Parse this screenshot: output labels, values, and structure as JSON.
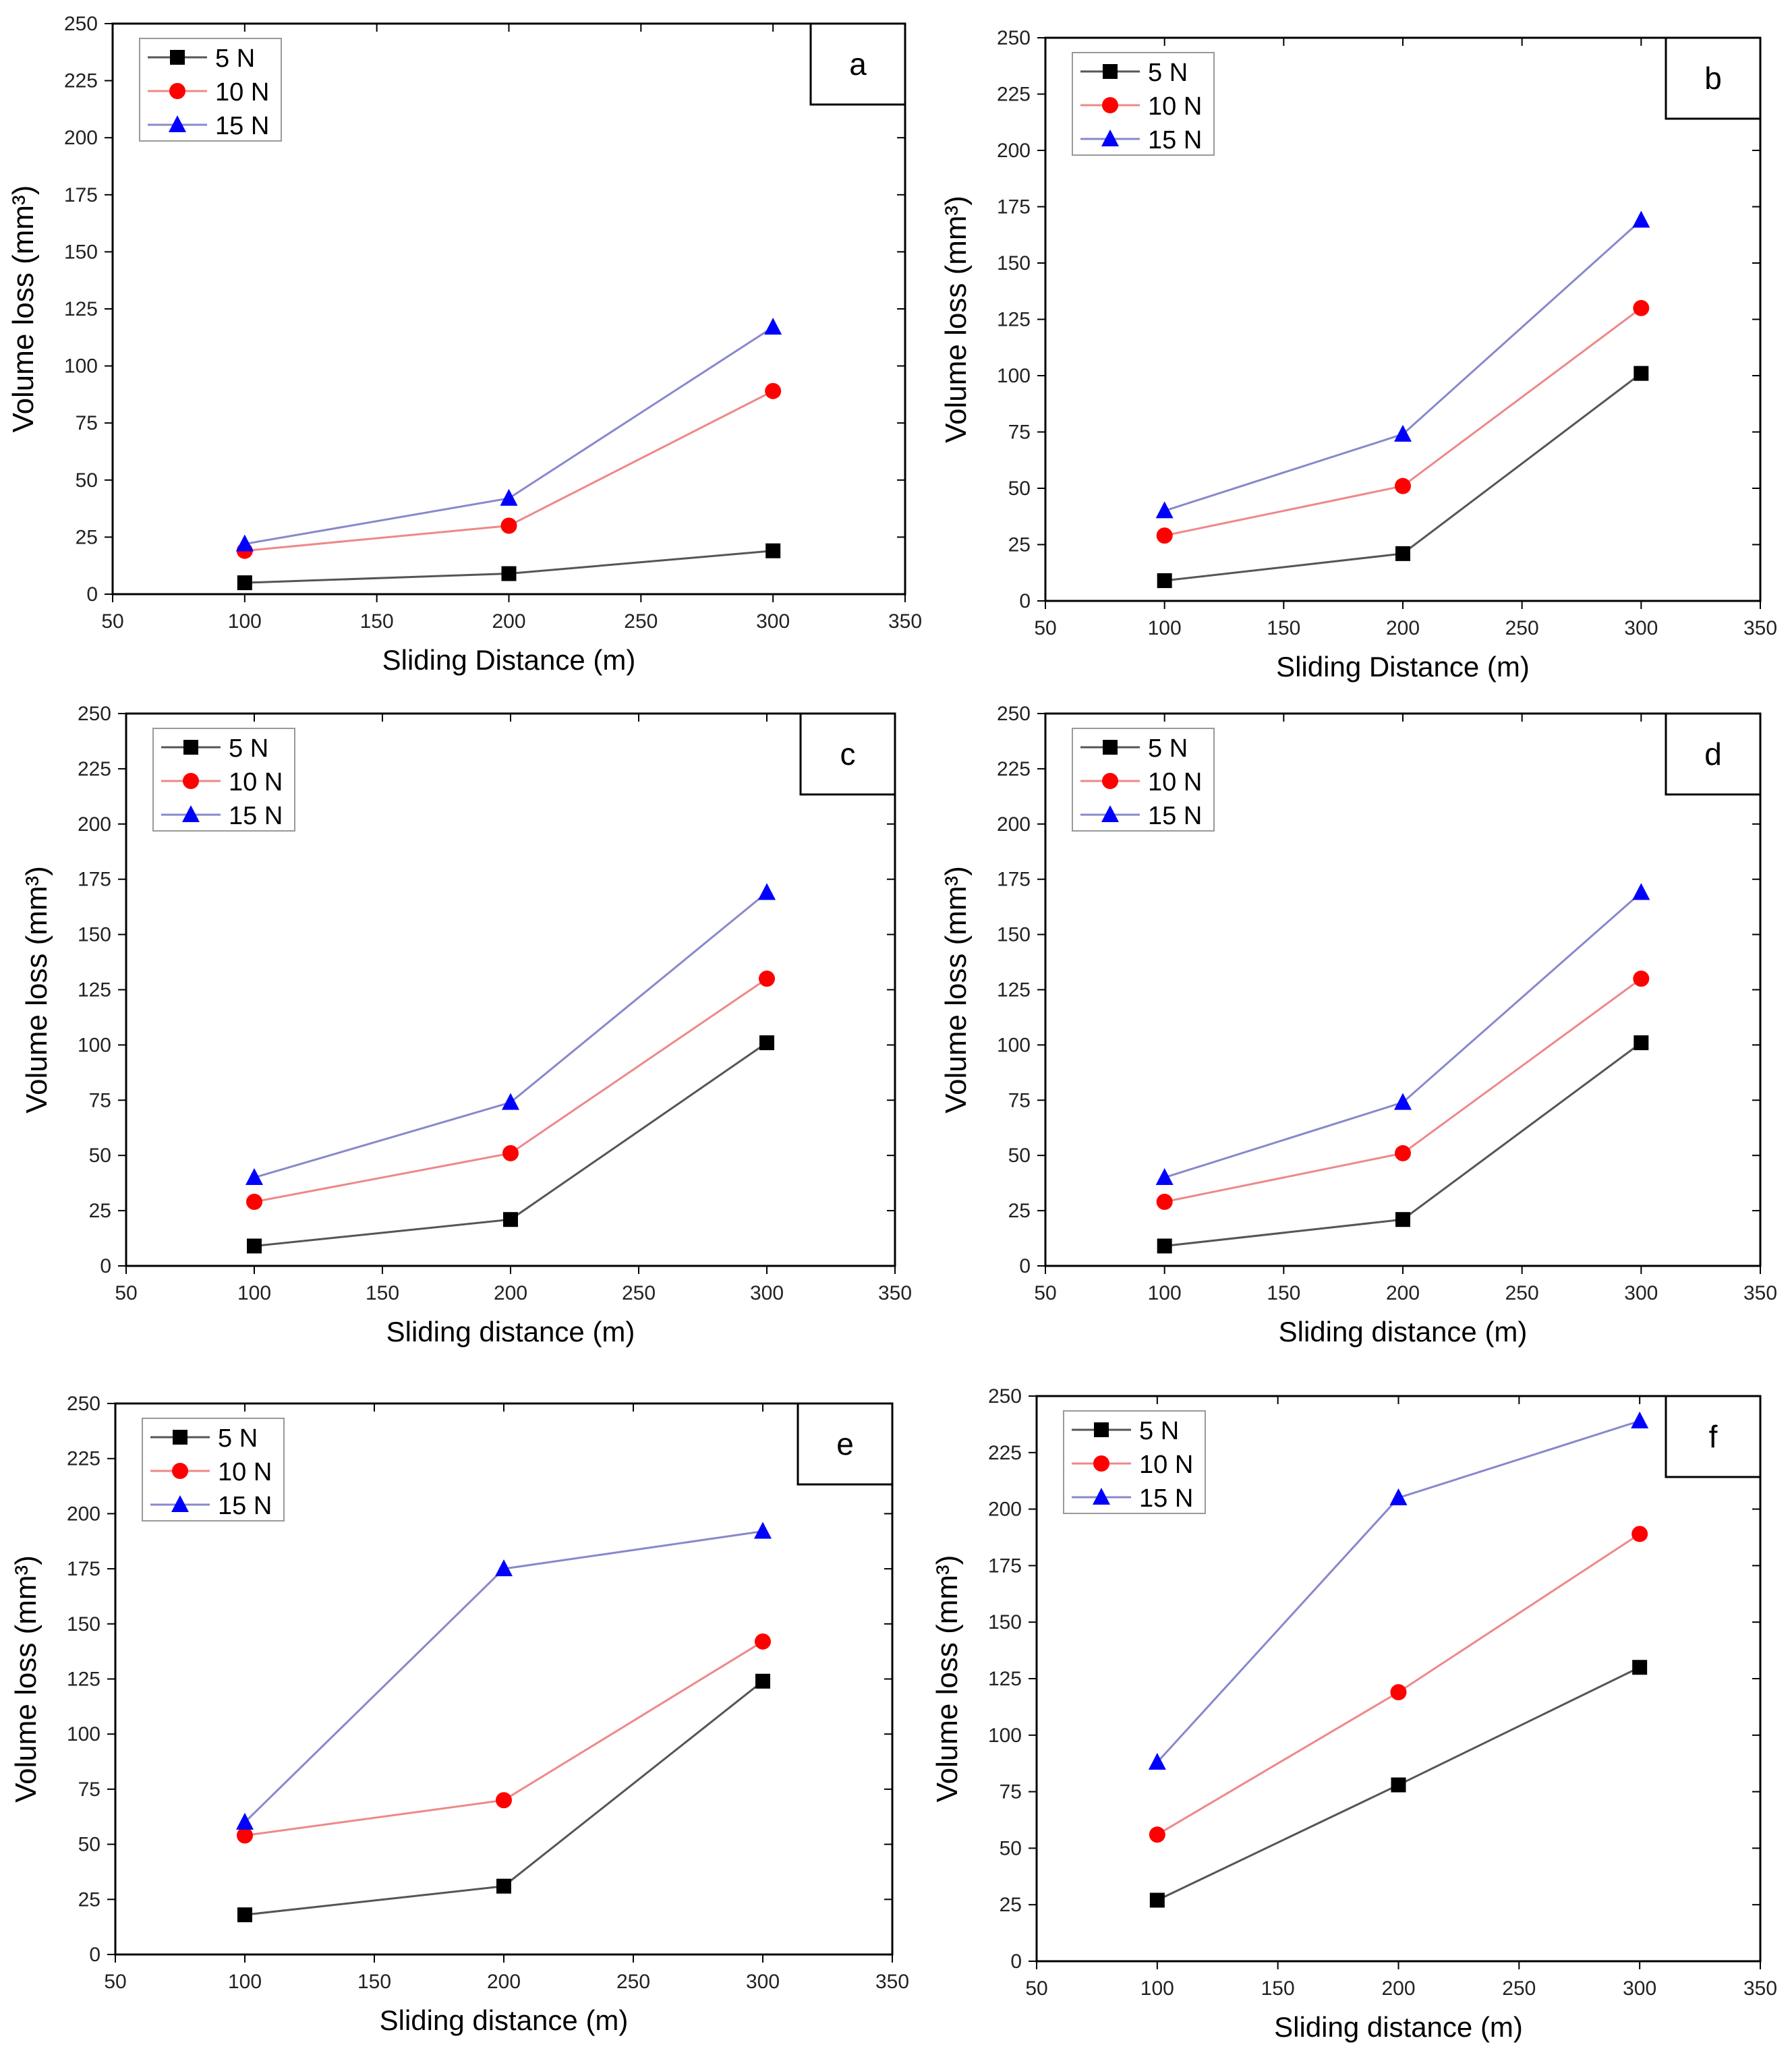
{
  "chart_data": [
    {
      "panel": "a",
      "type": "line",
      "xlabel": "Sliding Distance (m)",
      "ylabel": "Volume loss (mm³)",
      "xlim": [
        50,
        350
      ],
      "ylim": [
        0,
        250
      ],
      "xticks": [
        50,
        100,
        150,
        200,
        250,
        300,
        350
      ],
      "yticks": [
        0,
        25,
        50,
        75,
        100,
        125,
        150,
        175,
        200,
        225,
        250
      ],
      "legend": "top-left",
      "x": [
        100,
        200,
        300
      ],
      "series": [
        {
          "name": "5 N",
          "values": [
            5,
            9,
            19
          ],
          "color": "#000000",
          "marker": "square"
        },
        {
          "name": "10 N",
          "values": [
            19,
            30,
            89
          ],
          "color": "#ff0000",
          "marker": "circle"
        },
        {
          "name": "15 N",
          "values": [
            22,
            42,
            117
          ],
          "color": "#0000ff",
          "marker": "triangle"
        }
      ]
    },
    {
      "panel": "b",
      "type": "line",
      "xlabel": "Sliding Distance (m)",
      "ylabel": "Volume loss (mm³)",
      "xlim": [
        50,
        350
      ],
      "ylim": [
        0,
        250
      ],
      "xticks": [
        50,
        100,
        150,
        200,
        250,
        300,
        350
      ],
      "yticks": [
        0,
        25,
        50,
        75,
        100,
        125,
        150,
        175,
        200,
        225,
        250
      ],
      "legend": "top-left",
      "x": [
        100,
        200,
        300
      ],
      "series": [
        {
          "name": "5 N",
          "values": [
            9,
            21,
            101
          ],
          "color": "#000000",
          "marker": "square"
        },
        {
          "name": "10 N",
          "values": [
            29,
            51,
            130
          ],
          "color": "#ff0000",
          "marker": "circle"
        },
        {
          "name": "15 N",
          "values": [
            40,
            74,
            169
          ],
          "color": "#0000ff",
          "marker": "triangle"
        }
      ]
    },
    {
      "panel": "c",
      "type": "line",
      "xlabel": "Sliding distance (m)",
      "ylabel": "Volume loss (mm³)",
      "xlim": [
        50,
        350
      ],
      "ylim": [
        0,
        250
      ],
      "xticks": [
        50,
        100,
        150,
        200,
        250,
        300,
        350
      ],
      "yticks": [
        0,
        25,
        50,
        75,
        100,
        125,
        150,
        175,
        200,
        225,
        250
      ],
      "legend": "top-left",
      "x": [
        100,
        200,
        300
      ],
      "series": [
        {
          "name": "5 N",
          "values": [
            9,
            21,
            101
          ],
          "color": "#000000",
          "marker": "square"
        },
        {
          "name": "10 N",
          "values": [
            29,
            51,
            130
          ],
          "color": "#ff0000",
          "marker": "circle"
        },
        {
          "name": "15 N",
          "values": [
            40,
            74,
            169
          ],
          "color": "#0000ff",
          "marker": "triangle"
        }
      ]
    },
    {
      "panel": "d",
      "type": "line",
      "xlabel": "Sliding distance (m)",
      "ylabel": "Volume loss (mm³)",
      "xlim": [
        50,
        350
      ],
      "ylim": [
        0,
        250
      ],
      "xticks": [
        50,
        100,
        150,
        200,
        250,
        300,
        350
      ],
      "yticks": [
        0,
        25,
        50,
        75,
        100,
        125,
        150,
        175,
        200,
        225,
        250
      ],
      "legend": "top-left",
      "x": [
        100,
        200,
        300
      ],
      "series": [
        {
          "name": "5 N",
          "values": [
            9,
            21,
            101
          ],
          "color": "#000000",
          "marker": "square"
        },
        {
          "name": "10 N",
          "values": [
            29,
            51,
            130
          ],
          "color": "#ff0000",
          "marker": "circle"
        },
        {
          "name": "15 N",
          "values": [
            40,
            74,
            169
          ],
          "color": "#0000ff",
          "marker": "triangle"
        }
      ]
    },
    {
      "panel": "e",
      "type": "line",
      "xlabel": "Sliding distance (m)",
      "ylabel": "Volume loss (mm³)",
      "xlim": [
        50,
        350
      ],
      "ylim": [
        0,
        250
      ],
      "xticks": [
        50,
        100,
        150,
        200,
        250,
        300,
        350
      ],
      "yticks": [
        0,
        25,
        50,
        75,
        100,
        125,
        150,
        175,
        200,
        225,
        250
      ],
      "legend": "top-left",
      "x": [
        100,
        200,
        300
      ],
      "series": [
        {
          "name": "5 N",
          "values": [
            18,
            31,
            124
          ],
          "color": "#000000",
          "marker": "square"
        },
        {
          "name": "10 N",
          "values": [
            54,
            70,
            142
          ],
          "color": "#ff0000",
          "marker": "circle"
        },
        {
          "name": "15 N",
          "values": [
            60,
            175,
            192
          ],
          "color": "#0000ff",
          "marker": "triangle"
        }
      ]
    },
    {
      "panel": "f",
      "type": "line",
      "xlabel": "Sliding distance (m)",
      "ylabel": "Volume loss (mm³)",
      "xlim": [
        50,
        350
      ],
      "ylim": [
        0,
        250
      ],
      "xticks": [
        50,
        100,
        150,
        200,
        250,
        300,
        350
      ],
      "yticks": [
        0,
        25,
        50,
        75,
        100,
        125,
        150,
        175,
        200,
        225,
        250
      ],
      "legend": "top-left",
      "x": [
        100,
        200,
        300
      ],
      "series": [
        {
          "name": "5 N",
          "values": [
            27,
            78,
            130
          ],
          "color": "#000000",
          "marker": "square"
        },
        {
          "name": "10 N",
          "values": [
            56,
            119,
            189
          ],
          "color": "#ff0000",
          "marker": "circle"
        },
        {
          "name": "15 N",
          "values": [
            88,
            205,
            239
          ],
          "color": "#0000ff",
          "marker": "triangle"
        }
      ]
    }
  ]
}
